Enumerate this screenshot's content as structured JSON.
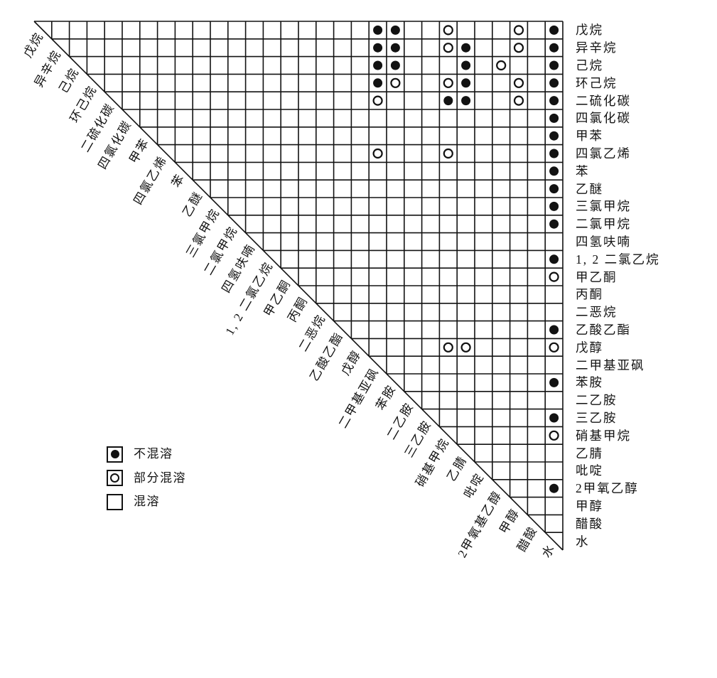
{
  "legend": {
    "items": [
      {
        "symbol": "filled-circle",
        "label": "不混溶"
      },
      {
        "symbol": "open-circle",
        "label": "部分混溶"
      },
      {
        "symbol": "empty-square",
        "label": "混溶"
      }
    ]
  },
  "chart_data": {
    "type": "heatmap",
    "title": "",
    "description": "溶剂混溶性三角矩阵：对角标签为列，右侧标签为行；格内符号表示两溶剂混溶性",
    "solvents_diagonal": [
      "戊烷",
      "异辛烷",
      "己烷",
      "环己烷",
      "二硫化碳",
      "四氯化碳",
      "甲苯",
      "四氯乙烯",
      "苯",
      "乙醚",
      "三氯甲烷",
      "二氯甲烷",
      "四氢呋喃",
      "1, 2 二氯乙烷",
      "甲乙酮",
      "丙酮",
      "二恶烷",
      "乙酸乙酯",
      "戊醇",
      "二甲基亚砜",
      "苯胺",
      "二乙胺",
      "三乙胺",
      "硝基甲烷",
      "乙腈",
      "吡啶",
      "2甲氧基乙醇",
      "甲醇",
      "醋酸",
      "水"
    ],
    "solvents_right": [
      "戊烷",
      "异辛烷",
      "己烷",
      "环己烷",
      "二硫化碳",
      "四氯化碳",
      "甲苯",
      "四氯乙烯",
      "苯",
      "乙醚",
      "三氯甲烷",
      "二氯甲烷",
      "四氢呋喃",
      "1, 2 二氯乙烷",
      "甲乙酮",
      "丙酮",
      "二恶烷",
      "乙酸乙酯",
      "戊醇",
      "二甲基亚砜",
      "苯胺",
      "二乙胺",
      "三乙胺",
      "硝基甲烷",
      "乙腈",
      "吡啶",
      "2甲氧乙醇",
      "甲醇",
      "醋酸",
      "水"
    ],
    "value_codes": {
      "不混溶": "filled-circle",
      "部分混溶": "open-circle",
      "混溶": "blank-cell"
    },
    "note": "r/c 为 1 起始的行/列序号；未标记的上三角格子均为混溶（空白）",
    "cells": [
      {
        "r": 1,
        "c": 20,
        "v": "不混溶"
      },
      {
        "r": 1,
        "c": 21,
        "v": "不混溶"
      },
      {
        "r": 1,
        "c": 24,
        "v": "部分混溶"
      },
      {
        "r": 1,
        "c": 28,
        "v": "部分混溶"
      },
      {
        "r": 1,
        "c": 30,
        "v": "不混溶"
      },
      {
        "r": 2,
        "c": 20,
        "v": "不混溶"
      },
      {
        "r": 2,
        "c": 21,
        "v": "不混溶"
      },
      {
        "r": 2,
        "c": 24,
        "v": "部分混溶"
      },
      {
        "r": 2,
        "c": 25,
        "v": "不混溶"
      },
      {
        "r": 2,
        "c": 28,
        "v": "部分混溶"
      },
      {
        "r": 2,
        "c": 30,
        "v": "不混溶"
      },
      {
        "r": 3,
        "c": 20,
        "v": "不混溶"
      },
      {
        "r": 3,
        "c": 21,
        "v": "不混溶"
      },
      {
        "r": 3,
        "c": 25,
        "v": "不混溶"
      },
      {
        "r": 3,
        "c": 27,
        "v": "部分混溶"
      },
      {
        "r": 3,
        "c": 30,
        "v": "不混溶"
      },
      {
        "r": 4,
        "c": 20,
        "v": "不混溶"
      },
      {
        "r": 4,
        "c": 21,
        "v": "部分混溶"
      },
      {
        "r": 4,
        "c": 24,
        "v": "部分混溶"
      },
      {
        "r": 4,
        "c": 25,
        "v": "不混溶"
      },
      {
        "r": 4,
        "c": 28,
        "v": "部分混溶"
      },
      {
        "r": 4,
        "c": 30,
        "v": "不混溶"
      },
      {
        "r": 5,
        "c": 20,
        "v": "部分混溶"
      },
      {
        "r": 5,
        "c": 24,
        "v": "不混溶"
      },
      {
        "r": 5,
        "c": 25,
        "v": "不混溶"
      },
      {
        "r": 5,
        "c": 28,
        "v": "部分混溶"
      },
      {
        "r": 5,
        "c": 30,
        "v": "不混溶"
      },
      {
        "r": 6,
        "c": 30,
        "v": "不混溶"
      },
      {
        "r": 7,
        "c": 30,
        "v": "不混溶"
      },
      {
        "r": 8,
        "c": 20,
        "v": "部分混溶"
      },
      {
        "r": 8,
        "c": 24,
        "v": "部分混溶"
      },
      {
        "r": 8,
        "c": 30,
        "v": "不混溶"
      },
      {
        "r": 9,
        "c": 30,
        "v": "不混溶"
      },
      {
        "r": 10,
        "c": 30,
        "v": "不混溶"
      },
      {
        "r": 11,
        "c": 30,
        "v": "不混溶"
      },
      {
        "r": 12,
        "c": 30,
        "v": "不混溶"
      },
      {
        "r": 14,
        "c": 30,
        "v": "不混溶"
      },
      {
        "r": 15,
        "c": 30,
        "v": "部分混溶"
      },
      {
        "r": 18,
        "c": 30,
        "v": "不混溶"
      },
      {
        "r": 19,
        "c": 24,
        "v": "部分混溶"
      },
      {
        "r": 19,
        "c": 25,
        "v": "部分混溶"
      },
      {
        "r": 19,
        "c": 30,
        "v": "部分混溶"
      },
      {
        "r": 21,
        "c": 30,
        "v": "不混溶"
      },
      {
        "r": 23,
        "c": 30,
        "v": "不混溶"
      },
      {
        "r": 24,
        "c": 30,
        "v": "部分混溶"
      },
      {
        "r": 27,
        "c": 30,
        "v": "不混溶"
      }
    ]
  }
}
